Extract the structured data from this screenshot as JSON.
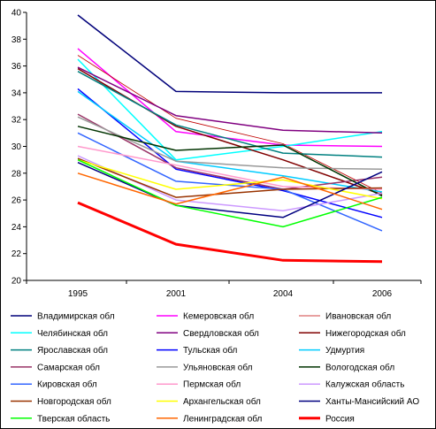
{
  "chart_data": {
    "type": "line",
    "x": [
      "1995",
      "2001",
      "2004",
      "2006"
    ],
    "ylim": [
      20,
      40
    ],
    "ytick_step": 2,
    "grid": false,
    "legend_position": "bottom",
    "series": [
      {
        "name": "Владимирская обл",
        "color": "#00007a",
        "width": 1.5,
        "values": [
          39.8,
          34.1,
          34.0,
          34.0
        ]
      },
      {
        "name": "Кемеровская обл",
        "color": "#ff00ff",
        "width": 1.5,
        "values": [
          37.3,
          31.1,
          30.1,
          30.0
        ]
      },
      {
        "name": "Ивановская обл",
        "color": "#c00000",
        "width": 0.8,
        "values": [
          36.8,
          32.1,
          30.2,
          26.5
        ]
      },
      {
        "name": "Челябинская обл",
        "color": "#00ffff",
        "width": 1.5,
        "values": [
          36.5,
          29.0,
          30.0,
          31.1
        ]
      },
      {
        "name": "Свердловская обл",
        "color": "#800080",
        "width": 1.5,
        "values": [
          35.9,
          32.3,
          31.2,
          31.0
        ]
      },
      {
        "name": "Нижегородская обл",
        "color": "#800000",
        "width": 1.5,
        "values": [
          35.8,
          31.5,
          29.0,
          26.4
        ]
      },
      {
        "name": "Ярославская обл",
        "color": "#008080",
        "width": 1.5,
        "values": [
          35.6,
          31.6,
          29.5,
          29.2
        ]
      },
      {
        "name": "Тульская обл",
        "color": "#0000ff",
        "width": 1.5,
        "values": [
          34.3,
          28.3,
          26.7,
          24.7
        ]
      },
      {
        "name": "Удмуртия",
        "color": "#00ccff",
        "width": 1.5,
        "values": [
          34.1,
          28.9,
          27.8,
          26.6
        ]
      },
      {
        "name": "Самарская обл",
        "color": "#993366",
        "width": 1.5,
        "values": [
          32.4,
          28.4,
          26.8,
          27.7
        ]
      },
      {
        "name": "Ульяновская обл",
        "color": "#999999",
        "width": 1.5,
        "values": [
          32.2,
          28.9,
          28.4,
          28.3
        ]
      },
      {
        "name": "Вологодская обл",
        "color": "#003300",
        "width": 1.5,
        "values": [
          31.5,
          29.7,
          30.1,
          26.3
        ]
      },
      {
        "name": "Кировская обл",
        "color": "#3366ff",
        "width": 1.5,
        "values": [
          31.0,
          27.4,
          26.8,
          23.7
        ]
      },
      {
        "name": "Пермская обл",
        "color": "#ff99cc",
        "width": 1.5,
        "values": [
          30.0,
          28.6,
          27.0,
          26.8
        ]
      },
      {
        "name": "Калужская область",
        "color": "#cc99ff",
        "width": 1.5,
        "values": [
          29.3,
          26.0,
          25.2,
          26.5
        ]
      },
      {
        "name": "Новгородская обл",
        "color": "#993300",
        "width": 1.5,
        "values": [
          29.1,
          26.2,
          26.8,
          26.9
        ]
      },
      {
        "name": "Архангельская обл",
        "color": "#ffff00",
        "width": 1.5,
        "values": [
          29.0,
          26.8,
          27.5,
          26.1
        ]
      },
      {
        "name": "Ханты-Мансийский АО",
        "color": "#000080",
        "width": 1.5,
        "values": [
          28.8,
          25.6,
          24.7,
          28.1
        ]
      },
      {
        "name": "Тверская область",
        "color": "#00ff00",
        "width": 1.5,
        "values": [
          29.0,
          25.6,
          24.0,
          26.2
        ]
      },
      {
        "name": "Ленинградская обл",
        "color": "#ff6600",
        "width": 1.5,
        "values": [
          28.0,
          25.7,
          27.7,
          25.3
        ]
      },
      {
        "name": "Россия",
        "color": "#ff0000",
        "width": 3,
        "values": [
          25.8,
          22.7,
          21.5,
          21.4
        ]
      }
    ]
  }
}
